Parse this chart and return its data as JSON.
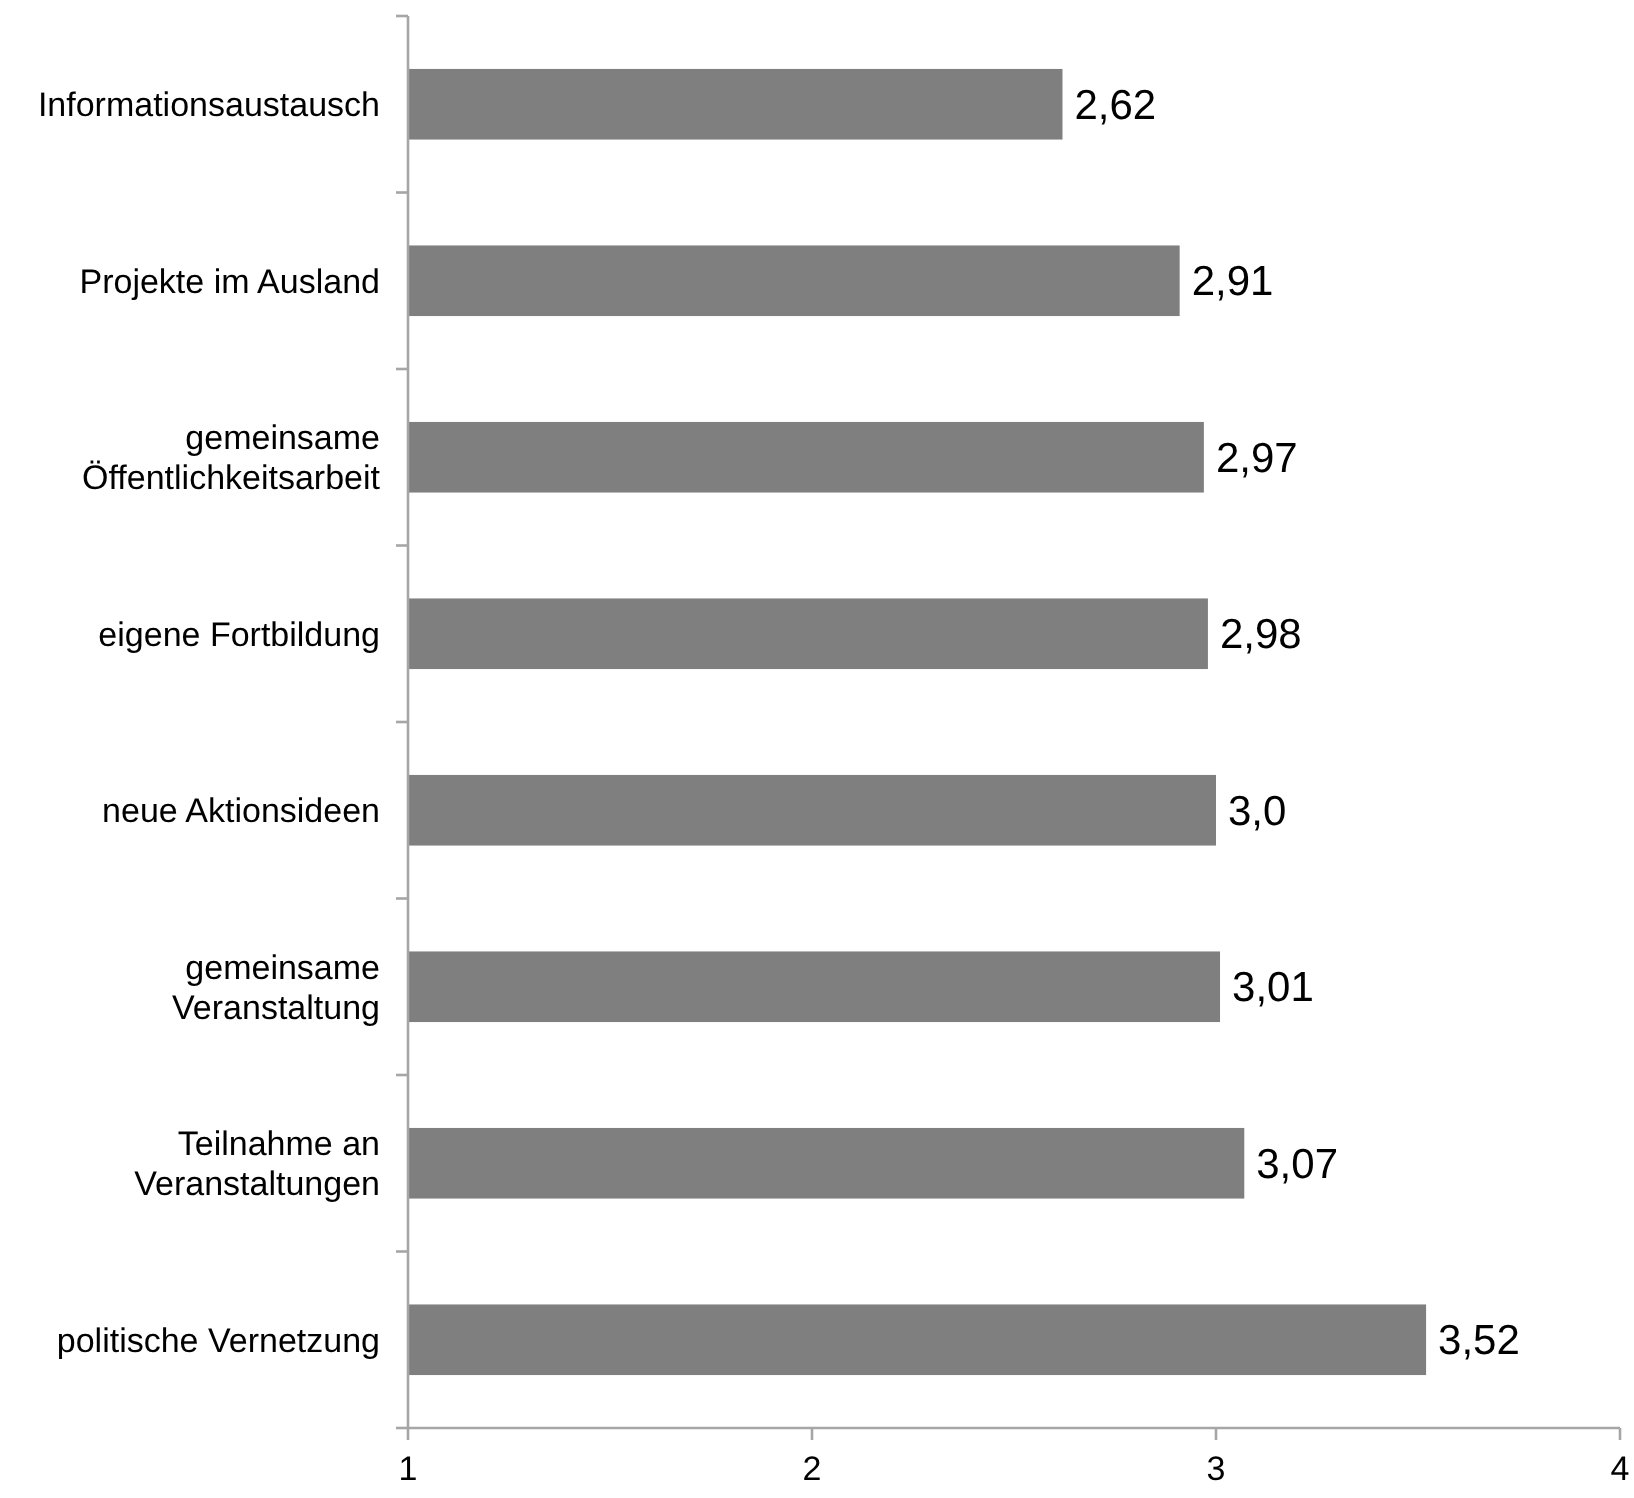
{
  "chart_data": {
    "type": "bar",
    "orientation": "horizontal",
    "categories": [
      "Informationsaustausch",
      "Projekte im Ausland",
      "gemeinsame Öffentlichkeitsarbeit",
      "eigene Fortbildung",
      "neue Aktionsideen",
      "gemeinsame Veranstaltung",
      "Teilnahme an Veranstaltungen",
      "politische Vernetzung"
    ],
    "values": [
      2.62,
      2.91,
      2.97,
      2.98,
      3.0,
      3.01,
      3.07,
      3.52
    ],
    "value_labels": [
      "2,62",
      "2,91",
      "2,97",
      "2,98",
      "3,0",
      "3,01",
      "3,07",
      "3,52"
    ],
    "color": "#7f7f7f",
    "xlim": [
      1,
      4
    ],
    "xticks": [
      1,
      2,
      3,
      4
    ]
  }
}
